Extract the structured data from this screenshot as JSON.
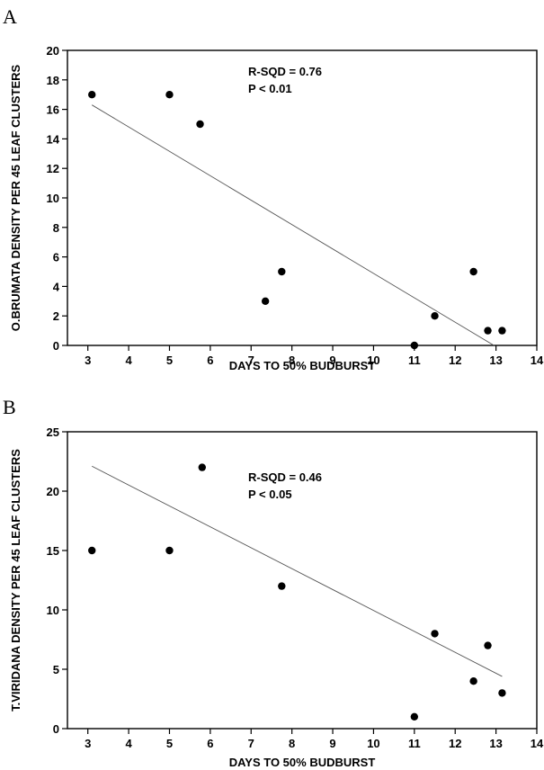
{
  "chart_data": [
    {
      "panel_label": "A",
      "type": "scatter",
      "xlabel": "DAYS TO 50% BUDBURST",
      "ylabel": "O.BRUMATA DENSITY PER 45 LEAF CLUSTERS",
      "xlim": [
        2.5,
        14
      ],
      "ylim": [
        0,
        20
      ],
      "x_ticks": [
        3,
        4,
        5,
        6,
        7,
        8,
        9,
        10,
        11,
        12,
        13,
        14
      ],
      "y_ticks": [
        0,
        2,
        4,
        6,
        8,
        10,
        12,
        14,
        16,
        18,
        20
      ],
      "points": [
        {
          "x": 3.1,
          "y": 17
        },
        {
          "x": 5.0,
          "y": 17
        },
        {
          "x": 5.75,
          "y": 15
        },
        {
          "x": 7.35,
          "y": 3
        },
        {
          "x": 7.75,
          "y": 5
        },
        {
          "x": 11.0,
          "y": 0
        },
        {
          "x": 11.5,
          "y": 2
        },
        {
          "x": 12.45,
          "y": 5
        },
        {
          "x": 12.8,
          "y": 1
        },
        {
          "x": 13.15,
          "y": 1
        }
      ],
      "fit_line": {
        "x": [
          3.1,
          12.95
        ],
        "y": [
          16.3,
          0
        ]
      },
      "annotation": [
        "R-SQD = 0.76",
        "P < 0.01"
      ],
      "grid": false
    },
    {
      "panel_label": "B",
      "type": "scatter",
      "xlabel": "DAYS TO 50% BUDBURST",
      "ylabel": "T.VIRIDANA DENSITY PER 45 LEAF CLUSTERS",
      "xlim": [
        2.5,
        14
      ],
      "ylim": [
        0,
        25
      ],
      "x_ticks": [
        3,
        4,
        5,
        6,
        7,
        8,
        9,
        10,
        11,
        12,
        13,
        14
      ],
      "y_ticks": [
        0,
        5,
        10,
        15,
        20,
        25
      ],
      "points": [
        {
          "x": 3.1,
          "y": 15
        },
        {
          "x": 5.0,
          "y": 15
        },
        {
          "x": 5.8,
          "y": 22
        },
        {
          "x": 7.75,
          "y": 12
        },
        {
          "x": 11.0,
          "y": 1
        },
        {
          "x": 11.5,
          "y": 8
        },
        {
          "x": 12.45,
          "y": 4
        },
        {
          "x": 12.8,
          "y": 7
        },
        {
          "x": 13.15,
          "y": 3
        }
      ],
      "fit_line": {
        "x": [
          3.1,
          13.15
        ],
        "y": [
          22.1,
          4.4
        ]
      },
      "annotation": [
        "R-SQD = 0.46",
        "P < 0.05"
      ],
      "grid": false
    }
  ]
}
